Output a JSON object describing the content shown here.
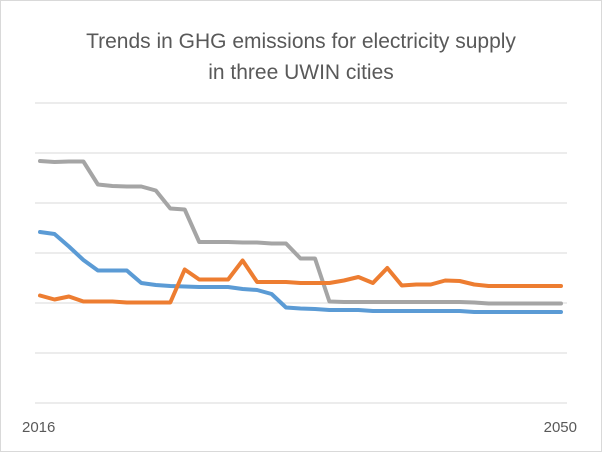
{
  "chart_data": {
    "type": "line",
    "title_line1": "Trends in GHG emissions for electricity supply",
    "title_line2": "in three UWIN cities",
    "xlabel": "",
    "ylabel": "",
    "x_start": 2016,
    "x_end": 2050,
    "tick_labels": [
      "2016",
      "2050"
    ],
    "ylim": [
      0,
      6
    ],
    "gridlines": [
      0,
      1,
      2,
      3,
      4,
      5,
      6
    ],
    "grid": true,
    "legend": "none",
    "series": [
      {
        "color": "#a5a5a5",
        "values": [
          4.84,
          4.82,
          4.83,
          4.83,
          4.37,
          4.34,
          4.33,
          4.33,
          4.25,
          3.89,
          3.87,
          3.22,
          3.22,
          3.22,
          3.21,
          3.21,
          3.19,
          3.19,
          2.89,
          2.89,
          2.03,
          2.02,
          2.02,
          2.02,
          2.02,
          2.02,
          2.02,
          2.02,
          2.02,
          2.02,
          2.01,
          1.99,
          1.99,
          1.99,
          1.99,
          1.99,
          1.99
        ]
      },
      {
        "color": "#5b9bd5",
        "values": [
          3.42,
          3.38,
          3.13,
          2.86,
          2.65,
          2.65,
          2.65,
          2.4,
          2.36,
          2.34,
          2.33,
          2.32,
          2.32,
          2.32,
          2.28,
          2.26,
          2.18,
          1.91,
          1.89,
          1.88,
          1.86,
          1.86,
          1.86,
          1.84,
          1.84,
          1.84,
          1.84,
          1.84,
          1.84,
          1.84,
          1.82,
          1.82,
          1.82,
          1.82,
          1.82,
          1.82,
          1.82
        ]
      },
      {
        "color": "#ed7d31",
        "values": [
          2.15,
          2.07,
          2.13,
          2.03,
          2.03,
          2.03,
          2.01,
          2.01,
          2.01,
          2.01,
          2.67,
          2.47,
          2.47,
          2.47,
          2.85,
          2.42,
          2.42,
          2.42,
          2.4,
          2.4,
          2.4,
          2.45,
          2.52,
          2.4,
          2.7,
          2.35,
          2.37,
          2.37,
          2.45,
          2.44,
          2.37,
          2.34,
          2.34,
          2.34,
          2.34,
          2.34,
          2.34
        ]
      }
    ]
  }
}
